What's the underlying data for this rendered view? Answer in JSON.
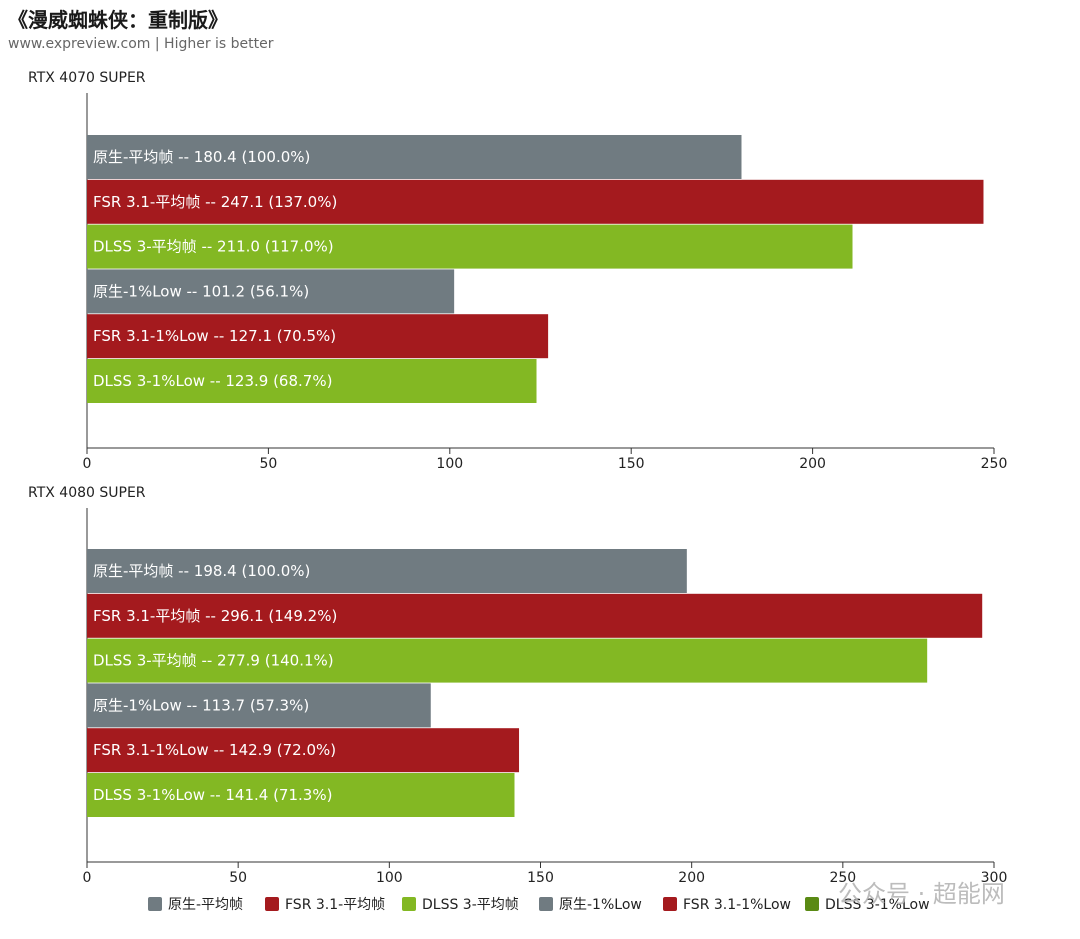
{
  "title": "《漫威蜘蛛侠：重制版》",
  "subtitle": "www.expreview.com | Higher is better",
  "watermark": "公众号 · 超能网",
  "colors": {
    "native": "#707b81",
    "fsr": "#a41a1e",
    "dlss": "#83b823"
  },
  "legend": [
    {
      "label": "原生-平均帧",
      "color": "#707b81"
    },
    {
      "label": "FSR 3.1-平均帧",
      "color": "#a41a1e"
    },
    {
      "label": "DLSS 3-平均帧",
      "color": "#83b823"
    },
    {
      "label": "原生-1%Low",
      "color": "#707b81"
    },
    {
      "label": "FSR 3.1-1%Low",
      "color": "#a41a1e"
    },
    {
      "label": "DLSS 3-1%Low",
      "color": "#5a8a14"
    }
  ],
  "chart_data": [
    {
      "type": "bar",
      "orientation": "horizontal",
      "title": "RTX 4070 SUPER",
      "xlim": [
        0,
        250
      ],
      "xticks": [
        0,
        50,
        100,
        150,
        200,
        250
      ],
      "grid": false,
      "legend_position": "bottom",
      "bars": [
        {
          "label": "原生-平均帧  --  180.4 (100.0%)",
          "value": 180.4,
          "color": "#707b81"
        },
        {
          "label": "FSR 3.1-平均帧  --  247.1 (137.0%)",
          "value": 247.1,
          "color": "#a41a1e"
        },
        {
          "label": "DLSS 3-平均帧  --  211.0 (117.0%)",
          "value": 211.0,
          "color": "#83b823"
        },
        {
          "label": "原生-1%Low  --  101.2 (56.1%)",
          "value": 101.2,
          "color": "#707b81"
        },
        {
          "label": "FSR 3.1-1%Low  --  127.1 (70.5%)",
          "value": 127.1,
          "color": "#a41a1e"
        },
        {
          "label": "DLSS 3-1%Low  --  123.9 (68.7%)",
          "value": 123.9,
          "color": "#83b823"
        }
      ]
    },
    {
      "type": "bar",
      "orientation": "horizontal",
      "title": "RTX 4080 SUPER",
      "xlim": [
        0,
        300
      ],
      "xticks": [
        0,
        50,
        100,
        150,
        200,
        250,
        300
      ],
      "grid": false,
      "legend_position": "bottom",
      "bars": [
        {
          "label": "原生-平均帧  --  198.4 (100.0%)",
          "value": 198.4,
          "color": "#707b81"
        },
        {
          "label": "FSR 3.1-平均帧  --  296.1 (149.2%)",
          "value": 296.1,
          "color": "#a41a1e"
        },
        {
          "label": "DLSS 3-平均帧  --  277.9 (140.1%)",
          "value": 277.9,
          "color": "#83b823"
        },
        {
          "label": "原生-1%Low  --  113.7 (57.3%)",
          "value": 113.7,
          "color": "#707b81"
        },
        {
          "label": "FSR 3.1-1%Low  --  142.9 (72.0%)",
          "value": 142.9,
          "color": "#a41a1e"
        },
        {
          "label": "DLSS 3-1%Low  --  141.4 (71.3%)",
          "value": 141.4,
          "color": "#83b823"
        }
      ]
    }
  ]
}
